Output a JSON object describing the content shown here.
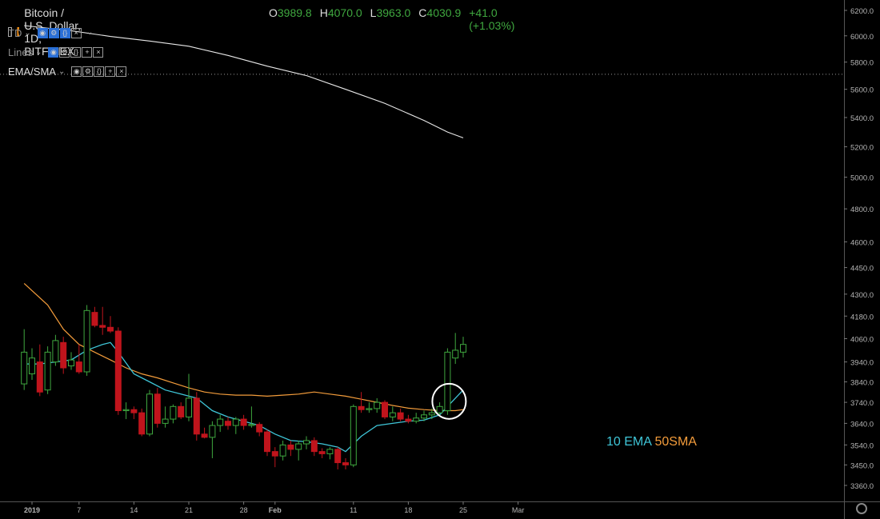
{
  "header": {
    "symbol": "Bitcoin / U.S. Dollar, 1D, BITFINEX",
    "ohlc": [
      {
        "k": "O",
        "v": "3989.8"
      },
      {
        "k": "H",
        "v": "4070.0"
      },
      {
        "k": "L",
        "v": "3963.0"
      },
      {
        "k": "C",
        "v": "4030.9"
      },
      {
        "k": "",
        "v": "+41.0 (+1.03%)"
      }
    ]
  },
  "indicators": [
    {
      "name": "TD"
    },
    {
      "name": "Lines"
    },
    {
      "name": "EMA/SMA"
    }
  ],
  "annotation": {
    "ema": "10 EMA",
    "sma": "50SMA"
  },
  "colors": {
    "up": "#3fa73f",
    "down": "#c0141c",
    "ema": "#3fc6d8",
    "sma": "#f39c3b",
    "long_ma": "#e8e8e8",
    "grid": "#333333"
  },
  "chart_data": {
    "type": "candlestick",
    "price_axis": {
      "ticks": [
        6200,
        6000,
        5800,
        5600,
        5400,
        5200,
        5000,
        4800,
        4600,
        4450,
        4300,
        4180,
        4060,
        3940,
        3840,
        3740,
        3640,
        3540,
        3450,
        3360
      ],
      "scale": "log",
      "range": [
        3320,
        6280
      ]
    },
    "x_axis": {
      "labels": [
        "2019",
        "7",
        "14",
        "21",
        "28",
        "Feb",
        "11",
        "18",
        "25",
        "Mar"
      ],
      "tick_days": [
        0,
        6,
        13,
        20,
        27,
        31,
        41,
        48,
        55,
        62
      ]
    },
    "candles": [
      {
        "d": -1,
        "o": 3830,
        "h": 4110,
        "l": 3800,
        "c": 3990
      },
      {
        "d": 0,
        "o": 3880,
        "h": 4010,
        "l": 3850,
        "c": 3960
      },
      {
        "d": 1,
        "o": 3940,
        "h": 4030,
        "l": 3770,
        "c": 3790
      },
      {
        "d": 2,
        "o": 3800,
        "h": 4020,
        "l": 3780,
        "c": 3990
      },
      {
        "d": 3,
        "o": 3940,
        "h": 4080,
        "l": 3920,
        "c": 4050
      },
      {
        "d": 4,
        "o": 4040,
        "h": 4070,
        "l": 3880,
        "c": 3910
      },
      {
        "d": 5,
        "o": 3920,
        "h": 3990,
        "l": 3900,
        "c": 3950
      },
      {
        "d": 6,
        "o": 3940,
        "h": 4030,
        "l": 3880,
        "c": 3890
      },
      {
        "d": 7,
        "o": 3890,
        "h": 4240,
        "l": 3870,
        "c": 4210
      },
      {
        "d": 8,
        "o": 4200,
        "h": 4230,
        "l": 4120,
        "c": 4130
      },
      {
        "d": 9,
        "o": 4130,
        "h": 4230,
        "l": 4080,
        "c": 4120
      },
      {
        "d": 10,
        "o": 4120,
        "h": 4180,
        "l": 4090,
        "c": 4100
      },
      {
        "d": 11,
        "o": 4100,
        "h": 4120,
        "l": 3680,
        "c": 3700
      },
      {
        "d": 12,
        "o": 3700,
        "h": 3740,
        "l": 3660,
        "c": 3705
      },
      {
        "d": 13,
        "o": 3705,
        "h": 3720,
        "l": 3660,
        "c": 3690
      },
      {
        "d": 14,
        "o": 3690,
        "h": 3710,
        "l": 3580,
        "c": 3590
      },
      {
        "d": 15,
        "o": 3590,
        "h": 3800,
        "l": 3580,
        "c": 3780
      },
      {
        "d": 16,
        "o": 3780,
        "h": 3810,
        "l": 3620,
        "c": 3640
      },
      {
        "d": 17,
        "o": 3640,
        "h": 3720,
        "l": 3620,
        "c": 3660
      },
      {
        "d": 18,
        "o": 3660,
        "h": 3730,
        "l": 3640,
        "c": 3720
      },
      {
        "d": 19,
        "o": 3720,
        "h": 3740,
        "l": 3660,
        "c": 3670
      },
      {
        "d": 20,
        "o": 3670,
        "h": 3880,
        "l": 3650,
        "c": 3760
      },
      {
        "d": 21,
        "o": 3760,
        "h": 3790,
        "l": 3560,
        "c": 3590
      },
      {
        "d": 22,
        "o": 3590,
        "h": 3620,
        "l": 3570,
        "c": 3575
      },
      {
        "d": 23,
        "o": 3575,
        "h": 3650,
        "l": 3480,
        "c": 3630
      },
      {
        "d": 24,
        "o": 3630,
        "h": 3680,
        "l": 3600,
        "c": 3660
      },
      {
        "d": 25,
        "o": 3650,
        "h": 3670,
        "l": 3610,
        "c": 3630
      },
      {
        "d": 26,
        "o": 3630,
        "h": 3670,
        "l": 3590,
        "c": 3660
      },
      {
        "d": 27,
        "o": 3660,
        "h": 3680,
        "l": 3610,
        "c": 3630
      },
      {
        "d": 28,
        "o": 3630,
        "h": 3720,
        "l": 3620,
        "c": 3635
      },
      {
        "d": 29,
        "o": 3635,
        "h": 3645,
        "l": 3580,
        "c": 3600
      },
      {
        "d": 30,
        "o": 3600,
        "h": 3610,
        "l": 3490,
        "c": 3510
      },
      {
        "d": 31,
        "o": 3510,
        "h": 3530,
        "l": 3440,
        "c": 3490
      },
      {
        "d": 32,
        "o": 3490,
        "h": 3560,
        "l": 3470,
        "c": 3540
      },
      {
        "d": 33,
        "o": 3540,
        "h": 3560,
        "l": 3490,
        "c": 3520
      },
      {
        "d": 34,
        "o": 3520,
        "h": 3560,
        "l": 3470,
        "c": 3545
      },
      {
        "d": 35,
        "o": 3545,
        "h": 3580,
        "l": 3520,
        "c": 3560
      },
      {
        "d": 36,
        "o": 3560,
        "h": 3575,
        "l": 3490,
        "c": 3510
      },
      {
        "d": 37,
        "o": 3510,
        "h": 3525,
        "l": 3480,
        "c": 3500
      },
      {
        "d": 38,
        "o": 3500,
        "h": 3530,
        "l": 3475,
        "c": 3520
      },
      {
        "d": 39,
        "o": 3520,
        "h": 3530,
        "l": 3430,
        "c": 3460
      },
      {
        "d": 40,
        "o": 3460,
        "h": 3480,
        "l": 3430,
        "c": 3450
      },
      {
        "d": 41,
        "o": 3450,
        "h": 3730,
        "l": 3440,
        "c": 3720
      },
      {
        "d": 42,
        "o": 3720,
        "h": 3790,
        "l": 3690,
        "c": 3705
      },
      {
        "d": 43,
        "o": 3705,
        "h": 3740,
        "l": 3690,
        "c": 3710
      },
      {
        "d": 44,
        "o": 3710,
        "h": 3760,
        "l": 3690,
        "c": 3740
      },
      {
        "d": 45,
        "o": 3740,
        "h": 3750,
        "l": 3660,
        "c": 3670
      },
      {
        "d": 46,
        "o": 3670,
        "h": 3720,
        "l": 3650,
        "c": 3690
      },
      {
        "d": 47,
        "o": 3690,
        "h": 3710,
        "l": 3650,
        "c": 3660
      },
      {
        "d": 48,
        "o": 3660,
        "h": 3680,
        "l": 3640,
        "c": 3650
      },
      {
        "d": 49,
        "o": 3650,
        "h": 3690,
        "l": 3640,
        "c": 3665
      },
      {
        "d": 50,
        "o": 3665,
        "h": 3700,
        "l": 3650,
        "c": 3680
      },
      {
        "d": 51,
        "o": 3680,
        "h": 3710,
        "l": 3660,
        "c": 3690
      },
      {
        "d": 52,
        "o": 3690,
        "h": 3740,
        "l": 3680,
        "c": 3720
      },
      {
        "d": 53,
        "o": 3700,
        "h": 4010,
        "l": 3680,
        "c": 3990
      },
      {
        "d": 54,
        "o": 3960,
        "h": 4090,
        "l": 3930,
        "c": 4000
      },
      {
        "d": 55,
        "o": 3990,
        "h": 4070,
        "l": 3963,
        "c": 4030
      }
    ],
    "ema10": [
      [
        -1,
        3930
      ],
      [
        1,
        3930
      ],
      [
        3,
        3940
      ],
      [
        5,
        3950
      ],
      [
        7,
        4000
      ],
      [
        9,
        4030
      ],
      [
        10,
        4040
      ],
      [
        11,
        3990
      ],
      [
        13,
        3880
      ],
      [
        15,
        3840
      ],
      [
        17,
        3800
      ],
      [
        19,
        3780
      ],
      [
        21,
        3760
      ],
      [
        23,
        3700
      ],
      [
        25,
        3670
      ],
      [
        27,
        3650
      ],
      [
        29,
        3630
      ],
      [
        31,
        3590
      ],
      [
        33,
        3560
      ],
      [
        35,
        3555
      ],
      [
        37,
        3545
      ],
      [
        39,
        3530
      ],
      [
        40,
        3510
      ],
      [
        42,
        3580
      ],
      [
        44,
        3630
      ],
      [
        46,
        3640
      ],
      [
        48,
        3650
      ],
      [
        50,
        3655
      ],
      [
        52,
        3680
      ],
      [
        54,
        3760
      ],
      [
        55,
        3800
      ]
    ],
    "sma50": [
      [
        -1,
        4360
      ],
      [
        2,
        4240
      ],
      [
        4,
        4110
      ],
      [
        6,
        4030
      ],
      [
        8,
        3990
      ],
      [
        10,
        3950
      ],
      [
        12,
        3910
      ],
      [
        14,
        3880
      ],
      [
        16,
        3860
      ],
      [
        18,
        3835
      ],
      [
        20,
        3810
      ],
      [
        22,
        3790
      ],
      [
        24,
        3780
      ],
      [
        26,
        3775
      ],
      [
        28,
        3775
      ],
      [
        30,
        3770
      ],
      [
        32,
        3775
      ],
      [
        34,
        3780
      ],
      [
        36,
        3790
      ],
      [
        38,
        3780
      ],
      [
        40,
        3770
      ],
      [
        42,
        3755
      ],
      [
        44,
        3740
      ],
      [
        46,
        3725
      ],
      [
        48,
        3712
      ],
      [
        50,
        3705
      ],
      [
        52,
        3700
      ],
      [
        54,
        3700
      ],
      [
        55,
        3705
      ]
    ],
    "long_ma": [
      [
        -1,
        6080
      ],
      [
        5,
        6040
      ],
      [
        10,
        5995
      ],
      [
        15,
        5960
      ],
      [
        20,
        5920
      ],
      [
        25,
        5850
      ],
      [
        30,
        5770
      ],
      [
        35,
        5700
      ],
      [
        40,
        5600
      ],
      [
        45,
        5500
      ],
      [
        50,
        5380
      ],
      [
        53,
        5300
      ],
      [
        55,
        5260
      ]
    ],
    "dotted_level": 5710,
    "highlight": {
      "d": 53,
      "price": 3745
    }
  }
}
